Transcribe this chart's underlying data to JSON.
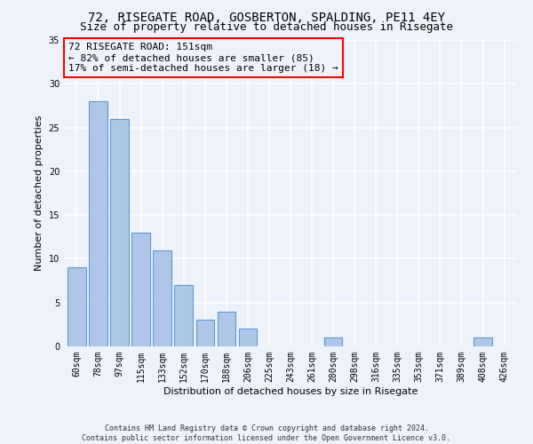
{
  "title_line1": "72, RISEGATE ROAD, GOSBERTON, SPALDING, PE11 4EY",
  "title_line2": "Size of property relative to detached houses in Risegate",
  "xlabel": "Distribution of detached houses by size in Risegate",
  "ylabel": "Number of detached properties",
  "categories": [
    "60sqm",
    "78sqm",
    "97sqm",
    "115sqm",
    "133sqm",
    "152sqm",
    "170sqm",
    "188sqm",
    "206sqm",
    "225sqm",
    "243sqm",
    "261sqm",
    "280sqm",
    "298sqm",
    "316sqm",
    "335sqm",
    "353sqm",
    "371sqm",
    "389sqm",
    "408sqm",
    "426sqm"
  ],
  "values": [
    9,
    28,
    26,
    13,
    11,
    7,
    3,
    4,
    2,
    0,
    0,
    0,
    1,
    0,
    0,
    0,
    0,
    0,
    0,
    1,
    0
  ],
  "bar_color": "#aec6e8",
  "bar_edge_color": "#5b9bd5",
  "ylim": [
    0,
    35
  ],
  "yticks": [
    0,
    5,
    10,
    15,
    20,
    25,
    30,
    35
  ],
  "annotation_text": "72 RISEGATE ROAD: 151sqm\n← 82% of detached houses are smaller (85)\n17% of semi-detached houses are larger (18) →",
  "footer_line1": "Contains HM Land Registry data © Crown copyright and database right 2024.",
  "footer_line2": "Contains public sector information licensed under the Open Government Licence v3.0.",
  "background_color": "#eef2fa",
  "grid_color": "#ffffff",
  "title_fontsize": 10,
  "subtitle_fontsize": 9,
  "ann_fontsize": 8,
  "footer_fontsize": 6,
  "ylabel_fontsize": 8,
  "xlabel_fontsize": 8,
  "tick_fontsize": 7
}
